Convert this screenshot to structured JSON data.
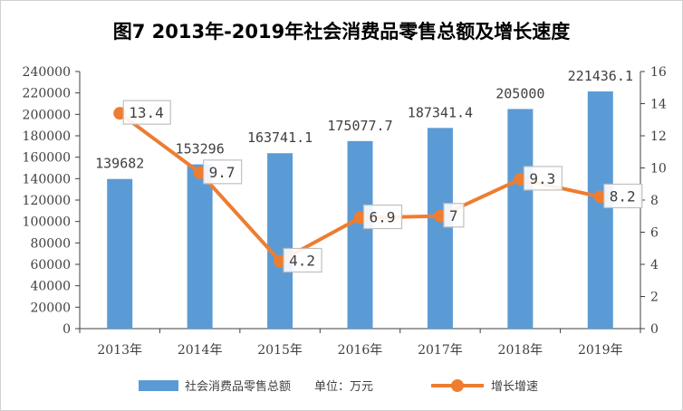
{
  "chart_data": {
    "type": "bar+line",
    "title": "图7 2013年-2019年社会消费品零售总额及增长速度",
    "categories": [
      "2013年",
      "2014年",
      "2015年",
      "2016年",
      "2017年",
      "2018年",
      "2019年"
    ],
    "series": [
      {
        "name": "社会消费品零售总额　　单位：万元",
        "type": "bar",
        "axis": "left",
        "values": [
          139682,
          153296,
          163741.1,
          175077.7,
          187341.4,
          205000,
          221436.1
        ],
        "labels": [
          "139682",
          "153296",
          "163741.1",
          "175077.7",
          "187341.4",
          "205000",
          "221436.1"
        ]
      },
      {
        "name": "增长增速",
        "type": "line",
        "axis": "right",
        "values": [
          13.4,
          9.7,
          4.2,
          6.9,
          7,
          9.3,
          8.2
        ],
        "labels": [
          "13.4",
          "9.7",
          "4.2",
          "6.9",
          "7",
          "9.3",
          "8.2"
        ]
      }
    ],
    "y_left": {
      "min": 0,
      "max": 240000,
      "step": 20000,
      "ticks": [
        "0",
        "20000",
        "40000",
        "60000",
        "80000",
        "100000",
        "120000",
        "140000",
        "160000",
        "180000",
        "200000",
        "220000",
        "240000"
      ]
    },
    "y_right": {
      "min": 0,
      "max": 16,
      "step": 2,
      "ticks": [
        "0",
        "2",
        "4",
        "6",
        "8",
        "10",
        "12",
        "14",
        "16"
      ]
    },
    "grid": false,
    "legend": "bottom",
    "colors": {
      "bar": "#5b9bd5",
      "line": "#ed7d31",
      "axis": "#404040",
      "label_box": "#bfbfbf"
    }
  }
}
